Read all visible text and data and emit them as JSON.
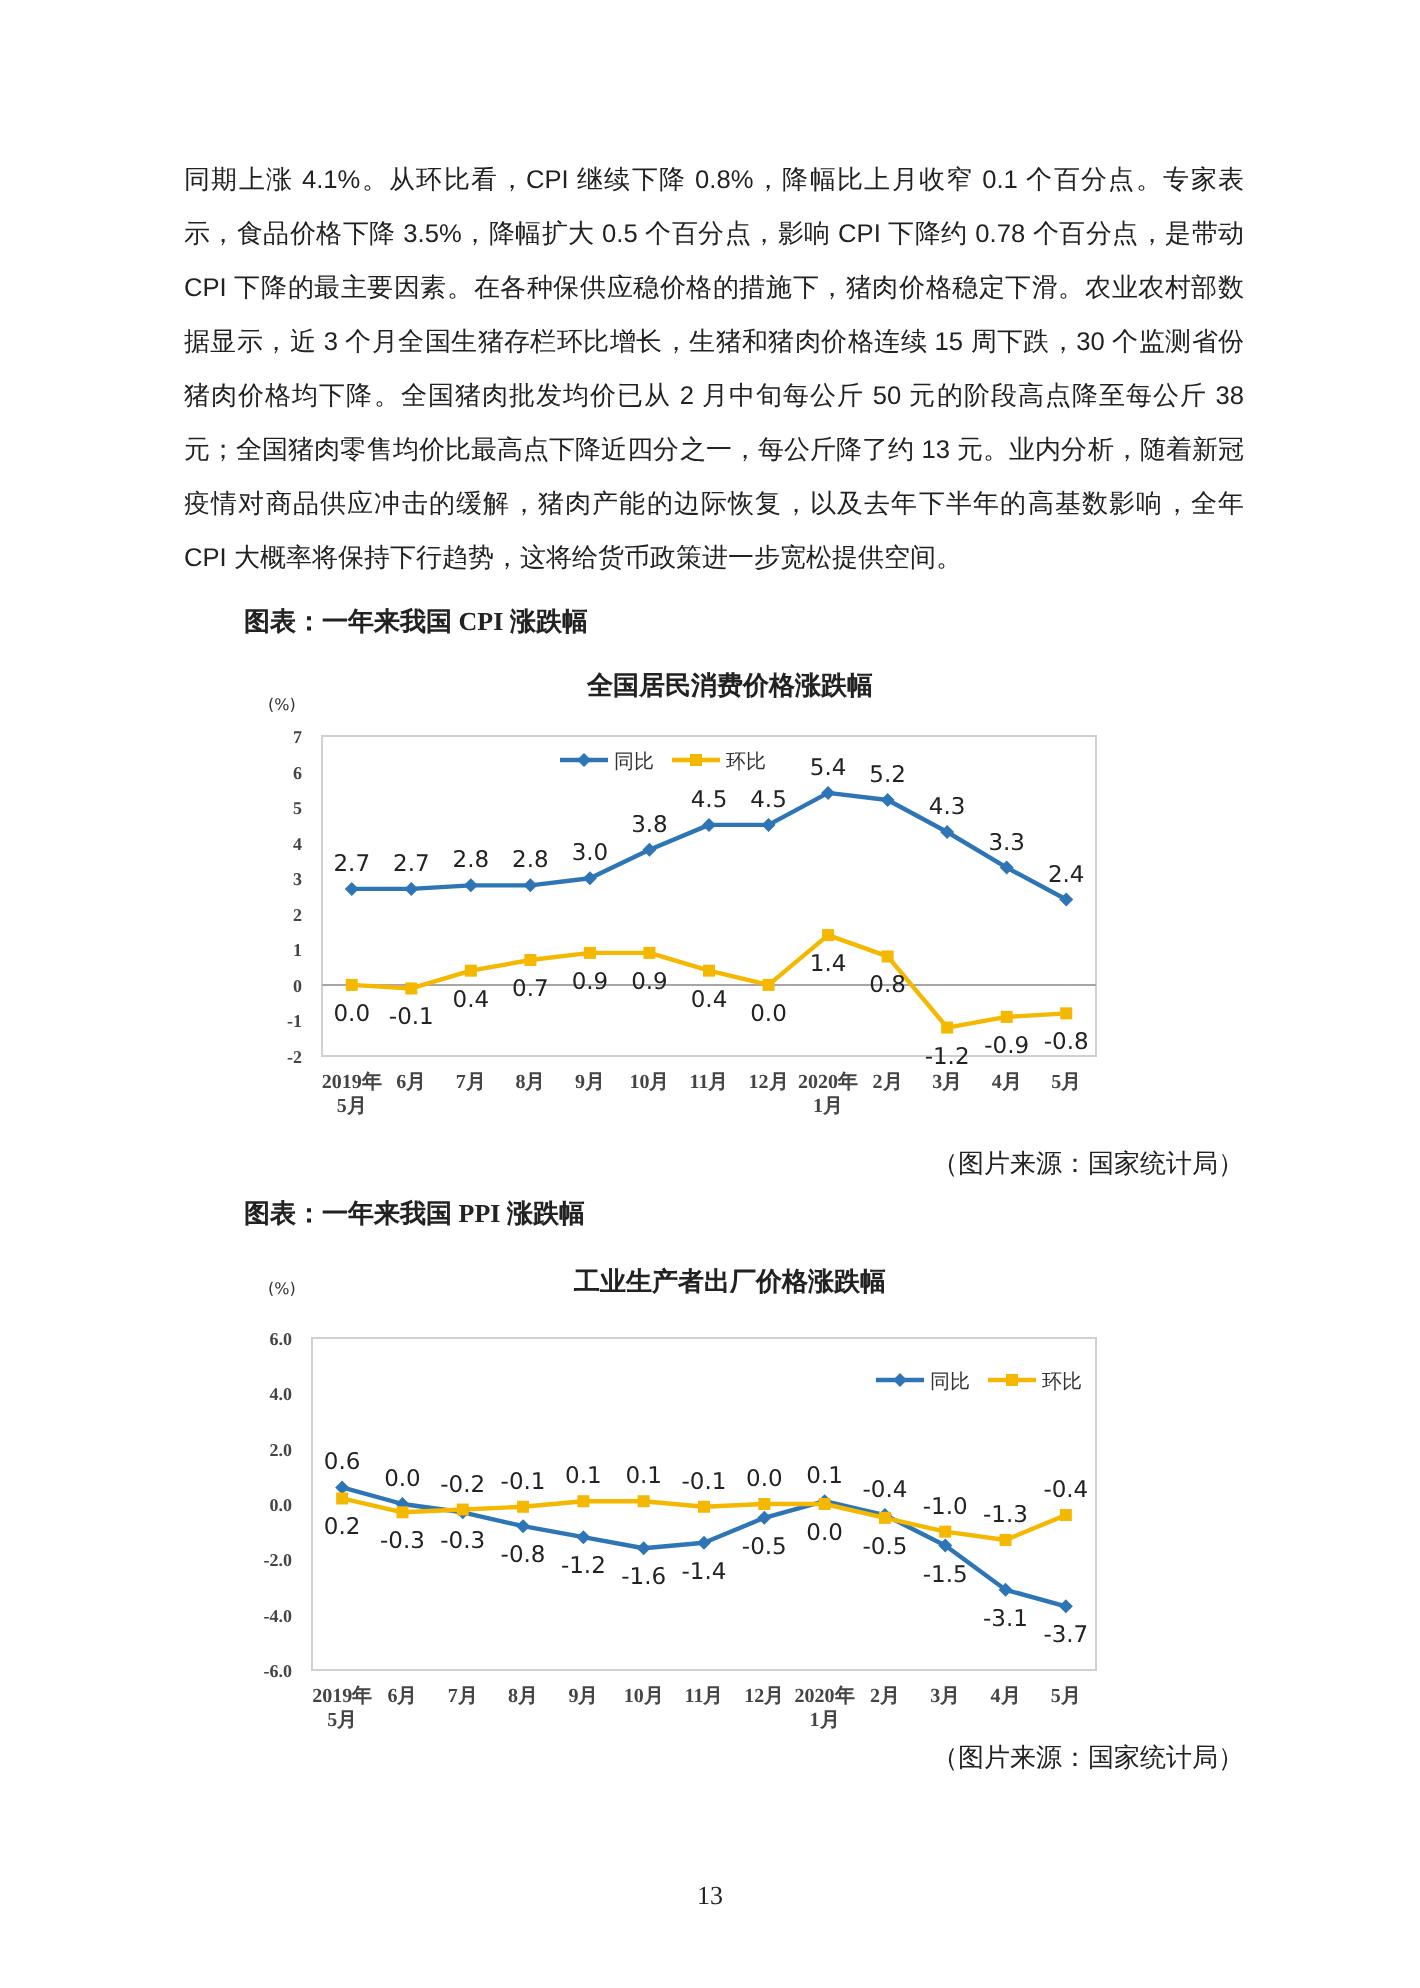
{
  "chart_data": [
    {
      "type": "line",
      "title": "全国居民消费价格涨跌幅",
      "ylabel": "(%)",
      "annotations": [
        "同期上涨 4.1%。从环比看，CPI 继续下降 0.8%，降幅比上月收窄 0.1 个百分点。专家表示，食品价格下降 3.5%，降幅扩大 0.5 个百分点，影响 CPI 下降约 0.78 个百分点，是带动 CPI 下降的最主要因素。在各种保供应稳价格的措施下，猪肉价格稳定下滑。农业农村部数据显示，近 3 个月全国生猪存栏环比增长，生猪和猪肉价格连续 15 周下跌，30 个监测省份猪肉价格均下降。全国猪肉批发均价已从 2 月中旬每公斤 50 元的阶段高点降至每公斤 38 元；全国猪肉零售均价比最高点下降近四分之一，每公斤降了约 13 元。业内分析，随着新冠疫情对商品供应冲击的缓解，猪肉产能的边际恢复，以及去年下半年的高基数影响，全年 CPI 大概率将保持下行趋势，这将给货币政策进一步宽松提供空间。",
        "图表：一年来我国 CPI 涨跌幅",
        "（图片来源：国家统计局）"
      ],
      "categories": [
        "2019年\n5月",
        "6月",
        "7月",
        "8月",
        "9月",
        "10月",
        "11月",
        "12月",
        "2020年\n1月",
        "2月",
        "3月",
        "4月",
        "5月"
      ],
      "series": [
        {
          "name": "同比",
          "color": "#2e75b6",
          "marker": "diamond",
          "values": [
            2.7,
            2.7,
            2.8,
            2.8,
            3.0,
            3.8,
            4.5,
            4.5,
            5.4,
            5.2,
            4.3,
            3.3,
            2.4
          ],
          "value_labels": [
            "2.7",
            "2.7",
            "2.8",
            "2.8",
            "3.0",
            "3.8",
            "4.5",
            "4.5",
            "5.4",
            "5.2",
            "4.3",
            "3.3",
            "2.4"
          ]
        },
        {
          "name": "环比",
          "color": "#f5b800",
          "marker": "square",
          "values": [
            0.0,
            -0.1,
            0.4,
            0.7,
            0.9,
            0.9,
            0.4,
            0.0,
            1.4,
            0.8,
            -1.2,
            -0.9,
            -0.8
          ],
          "value_labels": [
            "0.0",
            "-0.1",
            "0.4",
            "0.7",
            "0.9",
            "0.9",
            "0.4",
            "0.0",
            "1.4",
            "0.8",
            "-1.2",
            "-0.9",
            "-0.8"
          ]
        }
      ],
      "ylim": [
        -2,
        7
      ],
      "yticks": [
        -2,
        -1,
        0,
        1,
        2,
        3,
        4,
        5,
        6,
        7
      ],
      "ref_lines": [
        {
          "axis": "y",
          "value": 0,
          "color": "#a6a6a6"
        }
      ],
      "legend": "top",
      "line_style": "solid"
    },
    {
      "type": "line",
      "title": "工业生产者出厂价格涨跌幅",
      "ylabel": "(%)",
      "annotations": [
        "图表：一年来我国 PPI 涨跌幅",
        "（图片来源：国家统计局）",
        "13"
      ],
      "categories": [
        "2019年\n5月",
        "6月",
        "7月",
        "8月",
        "9月",
        "10月",
        "11月",
        "12月",
        "2020年\n1月",
        "2月",
        "3月",
        "4月",
        "5月"
      ],
      "series": [
        {
          "name": "同比",
          "color": "#2e75b6",
          "marker": "diamond",
          "values": [
            0.6,
            0.0,
            -0.3,
            -0.8,
            -1.2,
            -1.6,
            -1.4,
            -0.5,
            0.1,
            -0.4,
            -1.5,
            -3.1,
            -3.7
          ],
          "value_labels": [
            "0.6",
            "0.0",
            "-0.3",
            "-0.8",
            "-1.2",
            "-1.6",
            "-1.4",
            "-0.5",
            "0.1",
            "-0.4",
            "-1.5",
            "-3.1",
            "-3.7"
          ]
        },
        {
          "name": "环比",
          "color": "#f5b800",
          "marker": "square",
          "values": [
            0.2,
            -0.3,
            -0.2,
            -0.1,
            0.1,
            0.1,
            -0.1,
            0.0,
            0.0,
            -0.5,
            -1.0,
            -1.3,
            -0.4
          ],
          "value_labels": [
            "0.2",
            "-0.3",
            "-0.2",
            "-0.1",
            "0.1",
            "0.1",
            "-0.1",
            "0.0",
            "0.0",
            "-0.5",
            "-1.0",
            "-1.3",
            "-0.4"
          ]
        }
      ],
      "ylim": [
        -6,
        6
      ],
      "yticks": [
        {
          "value": -6,
          "label": "-6.0"
        },
        {
          "value": -4,
          "label": "-4.0"
        },
        {
          "value": -2,
          "label": "-2.0"
        },
        {
          "value": 0,
          "label": "0.0"
        },
        {
          "value": 2,
          "label": "2.0"
        },
        {
          "value": 4,
          "label": "4.0"
        },
        {
          "value": 6,
          "label": "6.0"
        }
      ],
      "legend": "top right",
      "line_style": "solid"
    }
  ]
}
